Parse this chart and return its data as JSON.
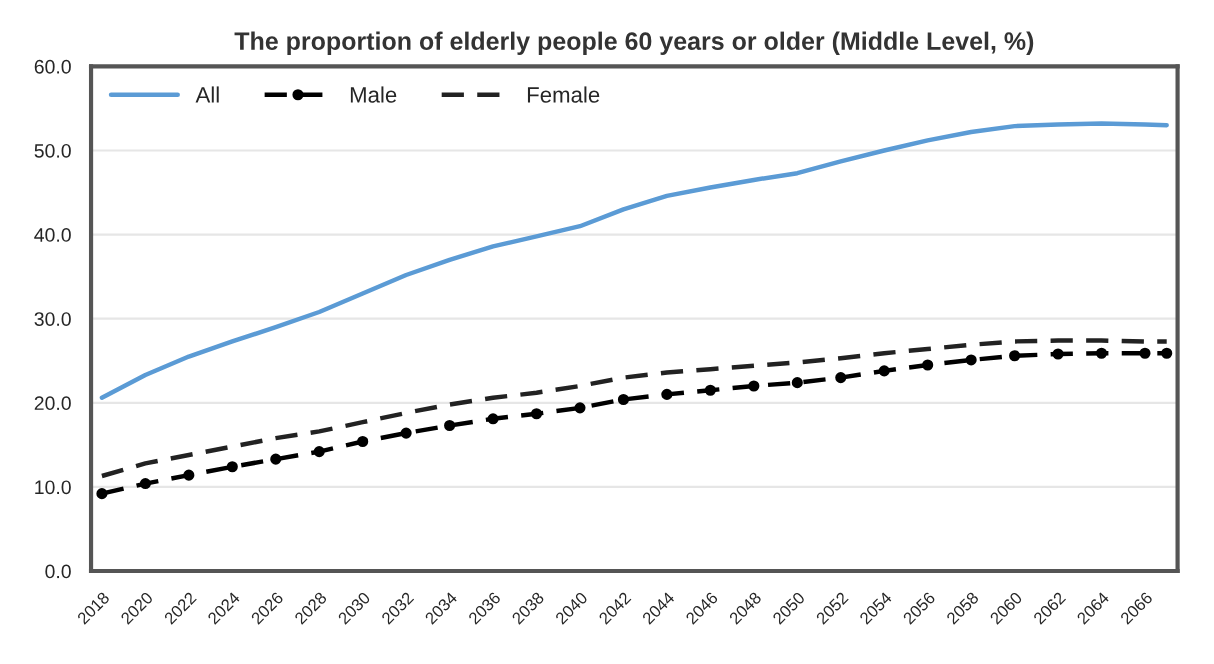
{
  "chart_data": {
    "type": "line",
    "title": "The proportion of elderly people 60 years or older (Middle Level, %)",
    "x": [
      2018,
      2020,
      2022,
      2024,
      2026,
      2028,
      2030,
      2032,
      2034,
      2036,
      2038,
      2040,
      2042,
      2044,
      2046,
      2048,
      2050,
      2052,
      2054,
      2056,
      2058,
      2060,
      2062,
      2064,
      2066,
      2067
    ],
    "series": [
      {
        "name": "All",
        "color": "#5b9bd5",
        "line_style": "solid",
        "marker": "none",
        "values": [
          20.6,
          23.3,
          25.5,
          27.3,
          29.0,
          30.8,
          33.0,
          35.2,
          37.0,
          38.6,
          39.8,
          41.0,
          43.0,
          44.6,
          45.6,
          46.5,
          47.3,
          48.7,
          50.0,
          51.2,
          52.2,
          52.9,
          53.1,
          53.2,
          53.1,
          53.0
        ]
      },
      {
        "name": "Male",
        "color": "#000000",
        "line_style": "dashed",
        "marker": "circle",
        "values": [
          9.2,
          10.4,
          11.4,
          12.4,
          13.3,
          14.2,
          15.4,
          16.4,
          17.3,
          18.1,
          18.7,
          19.4,
          20.4,
          21.0,
          21.5,
          22.0,
          22.4,
          23.0,
          23.8,
          24.5,
          25.1,
          25.6,
          25.8,
          25.9,
          25.9,
          25.9
        ]
      },
      {
        "name": "Female",
        "color": "#222222",
        "line_style": "dashed",
        "marker": "none",
        "values": [
          11.3,
          12.8,
          13.8,
          14.8,
          15.8,
          16.6,
          17.7,
          18.8,
          19.8,
          20.6,
          21.2,
          22.0,
          23.0,
          23.6,
          24.0,
          24.4,
          24.8,
          25.3,
          25.9,
          26.4,
          26.9,
          27.3,
          27.4,
          27.4,
          27.3,
          27.3
        ]
      }
    ],
    "xlim": [
      2017.5,
      2067.5
    ],
    "xticks": [
      2018,
      2020,
      2022,
      2024,
      2026,
      2028,
      2030,
      2032,
      2034,
      2036,
      2038,
      2040,
      2042,
      2044,
      2046,
      2048,
      2050,
      2052,
      2054,
      2056,
      2058,
      2060,
      2062,
      2064,
      2066
    ],
    "ylim": [
      0,
      60
    ],
    "yticks": [
      {
        "value": 0,
        "label": "0.0"
      },
      {
        "value": 10,
        "label": "10.0"
      },
      {
        "value": 20,
        "label": "20.0"
      },
      {
        "value": 30,
        "label": "30.0"
      },
      {
        "value": 40,
        "label": "40.0"
      },
      {
        "value": 50,
        "label": "50.0"
      },
      {
        "value": 60,
        "label": "60.0"
      }
    ],
    "grid": "y",
    "legend": "top left"
  }
}
